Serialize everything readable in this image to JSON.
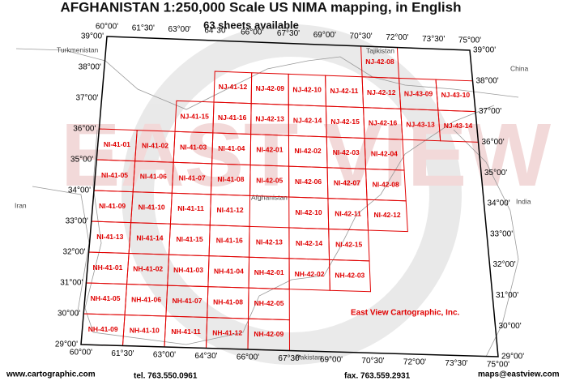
{
  "header": {
    "title": "AFGHANISTAN 1:250,000 Scale US NIMA mapping, in English",
    "subtitle": "63 sheets available"
  },
  "map": {
    "lon_labels": [
      "60°00'",
      "61°30'",
      "63°00'",
      "64°30'",
      "66°00'",
      "67°30'",
      "69°00'",
      "70°30'",
      "72°00'",
      "73°30'",
      "75°00'"
    ],
    "lat_labels": [
      "39°00'",
      "38°00'",
      "37°00'",
      "36°00'",
      "35°00'",
      "34°00'",
      "33°00'",
      "32°00'",
      "31°00'",
      "30°00'",
      "29°00'"
    ],
    "sheet_rows": [
      [
        null,
        null,
        null,
        null,
        null,
        null,
        null,
        "NJ-42-08",
        null,
        null
      ],
      [
        null,
        null,
        null,
        "NJ-41-12",
        "NJ-42-09",
        "NJ-42-10",
        "NJ-42-11",
        "NJ-42-12",
        "NJ-43-09",
        "NJ-43-10"
      ],
      [
        null,
        null,
        "NJ-41-15",
        "NJ-41-16",
        "NJ-42-13",
        "NJ-42-14",
        "NJ-42-15",
        "NJ-42-16",
        "NJ-43-13",
        "NJ-43-14"
      ],
      [
        "NI-41-01",
        "NI-41-02",
        "NI-41-03",
        "NI-41-04",
        "NI-42-01",
        "NI-42-02",
        "NI-42-03",
        "NI-42-04",
        null,
        null
      ],
      [
        "NI-41-05",
        "NI-41-06",
        "NI-41-07",
        "NI-41-08",
        "NI-42-05",
        "NI-42-06",
        "NI-42-07",
        "NI-42-08",
        null,
        null
      ],
      [
        "NI-41-09",
        "NI-41-10",
        "NI-41-11",
        "NI-41-12",
        null,
        "NI-42-10",
        "NI-42-11",
        "NI-42-12",
        null,
        null
      ],
      [
        "NI-41-13",
        "NI-41-14",
        "NI-41-15",
        "NI-41-16",
        "NI-42-13",
        "NI-42-14",
        "NI-42-15",
        null,
        null,
        null
      ],
      [
        "NH-41-01",
        "NH-41-02",
        "NH-41-03",
        "NH-41-04",
        "NH-42-01",
        "NH-42-02",
        "NH-42-03",
        null,
        null,
        null
      ],
      [
        "NH-41-05",
        "NH-41-06",
        "NH-41-07",
        "NH-41-08",
        "NH-42-05",
        null,
        null,
        null,
        null,
        null
      ],
      [
        "NH-41-09",
        "NH-41-10",
        "NH-41-11",
        "NH-41-12",
        "NH-42-09",
        null,
        null,
        null,
        null,
        null
      ]
    ],
    "countries": {
      "turkmenistan": "Turkmenistan",
      "tajikistan": "Tajikistan",
      "china": "China",
      "iran": "Iran",
      "india": "India",
      "pakistan": "Pakistan",
      "afghanistan": "Afghanistan"
    },
    "publisher": "East View Cartographic, Inc."
  },
  "footer": {
    "web": "www.cartographic.com",
    "tel": "tel. 763.550.0961",
    "fax": "fax. 763.559.2931",
    "email": "maps@eastview.com"
  }
}
